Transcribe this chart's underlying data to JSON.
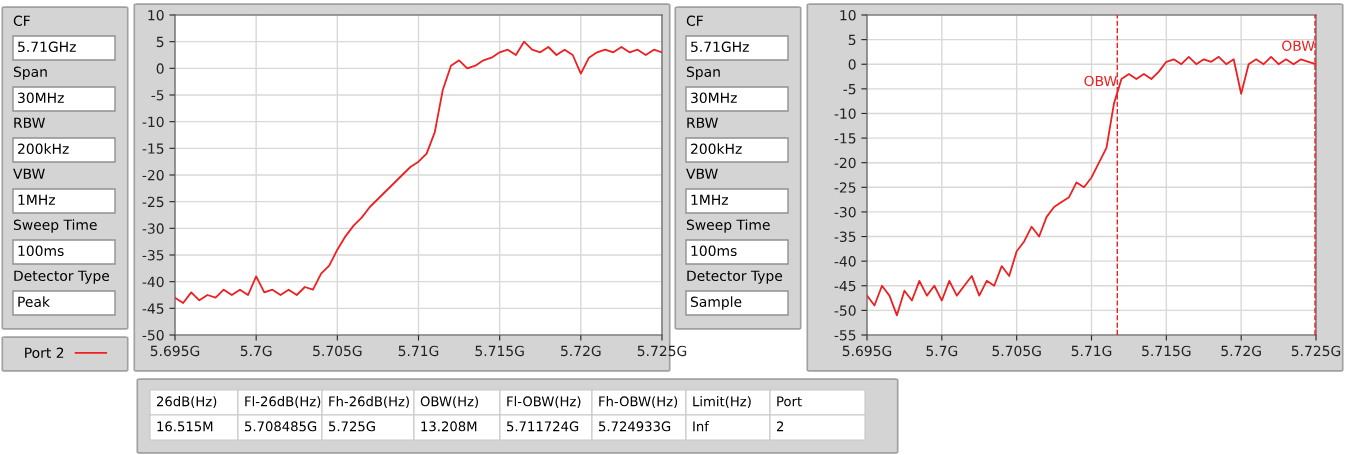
{
  "chart_data": [
    {
      "type": "other",
      "annotations": [
        "CF",
        "5.71GHz",
        "Span",
        "30MHz",
        "RBW",
        "200kHz",
        "VBW",
        "1MHz",
        "Sweep Time",
        "100ms",
        "Detector Type",
        "Peak"
      ]
    },
    {
      "type": "line",
      "x": [
        5.695,
        5.6955,
        5.696,
        5.6965,
        5.697,
        5.6975,
        5.698,
        5.6985,
        5.699,
        5.6995,
        5.7,
        5.7005,
        5.701,
        5.7015,
        5.702,
        5.7025,
        5.703,
        5.7035,
        5.704,
        5.7045,
        5.705,
        5.7055,
        5.706,
        5.7065,
        5.707,
        5.7075,
        5.708,
        5.7085,
        5.709,
        5.7095,
        5.71,
        5.7105,
        5.711,
        5.7115,
        5.712,
        5.7125,
        5.713,
        5.7135,
        5.714,
        5.7145,
        5.715,
        5.7155,
        5.716,
        5.7165,
        5.717,
        5.7175,
        5.718,
        5.7185,
        5.719,
        5.7195,
        5.72,
        5.7205,
        5.721,
        5.7215,
        5.722,
        5.7225,
        5.723,
        5.7235,
        5.724,
        5.7245,
        5.725
      ],
      "series": [
        {
          "name": "Port 2",
          "color": "#ee2020",
          "values": [
            -43,
            -44,
            -42,
            -43.5,
            -42.5,
            -43,
            -41.5,
            -42.5,
            -41.5,
            -42.5,
            -39,
            -42,
            -41.5,
            -42.5,
            -41.5,
            -42.5,
            -41,
            -41.5,
            -38.5,
            -37,
            -34,
            -31.5,
            -29.5,
            -28,
            -26,
            -24.5,
            -23,
            -21.5,
            -20,
            -18.5,
            -17.5,
            -16,
            -12,
            -4,
            0.5,
            1.5,
            0,
            0.5,
            1.5,
            2,
            3,
            3.5,
            2.5,
            5,
            3.5,
            3,
            4,
            2.5,
            3.5,
            2.5,
            -1,
            2,
            3,
            3.5,
            3,
            4,
            3,
            3.5,
            2.5,
            3.5,
            3
          ]
        }
      ],
      "xlim": [
        5.695,
        5.725
      ],
      "xticks": [
        {
          "value": 5.695,
          "label": "5.695G"
        },
        {
          "value": 5.7,
          "label": "5.7G"
        },
        {
          "value": 5.705,
          "label": "5.705G"
        },
        {
          "value": 5.71,
          "label": "5.71G"
        },
        {
          "value": 5.715,
          "label": "5.715G"
        },
        {
          "value": 5.72,
          "label": "5.72G"
        },
        {
          "value": 5.725,
          "label": "5.725G"
        }
      ],
      "ylim": [
        -50,
        10
      ],
      "yticks": [
        -50,
        -45,
        -40,
        -35,
        -30,
        -25,
        -20,
        -15,
        -10,
        -5,
        0,
        5,
        10
      ],
      "grid": true,
      "legend": "bottom left",
      "marker": "none",
      "line_style": "solid"
    },
    {
      "type": "other",
      "annotations": [
        "CF",
        "5.71GHz",
        "Span",
        "30MHz",
        "RBW",
        "200kHz",
        "VBW",
        "1MHz",
        "Sweep Time",
        "100ms",
        "Detector Type",
        "Sample"
      ]
    },
    {
      "type": "line",
      "x": [
        5.695,
        5.6955,
        5.696,
        5.6965,
        5.697,
        5.6975,
        5.698,
        5.6985,
        5.699,
        5.6995,
        5.7,
        5.7005,
        5.701,
        5.7015,
        5.702,
        5.7025,
        5.703,
        5.7035,
        5.704,
        5.7045,
        5.705,
        5.7055,
        5.706,
        5.7065,
        5.707,
        5.7075,
        5.708,
        5.7085,
        5.709,
        5.7095,
        5.71,
        5.7105,
        5.711,
        5.7115,
        5.712,
        5.7125,
        5.713,
        5.7135,
        5.714,
        5.7145,
        5.715,
        5.7155,
        5.716,
        5.7165,
        5.717,
        5.7175,
        5.718,
        5.7185,
        5.719,
        5.7195,
        5.72,
        5.7205,
        5.721,
        5.7215,
        5.722,
        5.7225,
        5.723,
        5.7235,
        5.724,
        5.7245,
        5.725
      ],
      "series": [
        {
          "color": "#ee2020",
          "values": [
            -47,
            -49,
            -45,
            -47,
            -51,
            -46,
            -48,
            -44,
            -47,
            -45,
            -48,
            -44,
            -47,
            -45,
            -43,
            -47,
            -44,
            -45,
            -41,
            -43,
            -38,
            -36,
            -33,
            -35,
            -31,
            -29,
            -28,
            -27,
            -24,
            -25,
            -23,
            -20,
            -17,
            -8,
            -3,
            -2,
            -3,
            -2,
            -3,
            -1.5,
            0.5,
            1,
            0,
            1.5,
            0,
            1,
            0.5,
            1.5,
            0,
            1,
            -6,
            0,
            1,
            0,
            1.5,
            0,
            1,
            0,
            1,
            0.5,
            0
          ]
        }
      ],
      "xlim": [
        5.695,
        5.725
      ],
      "xticks": [
        {
          "value": 5.695,
          "label": "5.695G"
        },
        {
          "value": 5.7,
          "label": "5.7G"
        },
        {
          "value": 5.705,
          "label": "5.705G"
        },
        {
          "value": 5.71,
          "label": "5.71G"
        },
        {
          "value": 5.715,
          "label": "5.715G"
        },
        {
          "value": 5.72,
          "label": "5.72G"
        },
        {
          "value": 5.725,
          "label": "5.725G"
        }
      ],
      "ylim": [
        -55,
        10
      ],
      "yticks": [
        -55,
        -50,
        -45,
        -40,
        -35,
        -30,
        -25,
        -20,
        -15,
        -10,
        -5,
        0,
        5,
        10
      ],
      "grid": true,
      "marker": "none",
      "line_style": "solid",
      "ref_lines": [
        {
          "axis": "x",
          "value": 5.711724,
          "label": "OBW",
          "color": "#ee2020",
          "line_style": "dashed"
        },
        {
          "axis": "x",
          "value": 5.724933,
          "label": "OBW",
          "color": "#ee2020",
          "line_style": "dashed"
        }
      ]
    },
    {
      "type": "other",
      "categories": [
        "26dB(Hz)",
        "Fl-26dB(Hz)",
        "Fh-26dB(Hz)",
        "OBW(Hz)",
        "Fl-OBW(Hz)",
        "Fh-OBW(Hz)",
        "Limit(Hz)",
        "Port"
      ],
      "value_labels": [
        "16.515M",
        "5.708485G",
        "5.725G",
        "13.208M",
        "5.711724G",
        "5.724933G",
        "Inf",
        "2"
      ]
    }
  ]
}
